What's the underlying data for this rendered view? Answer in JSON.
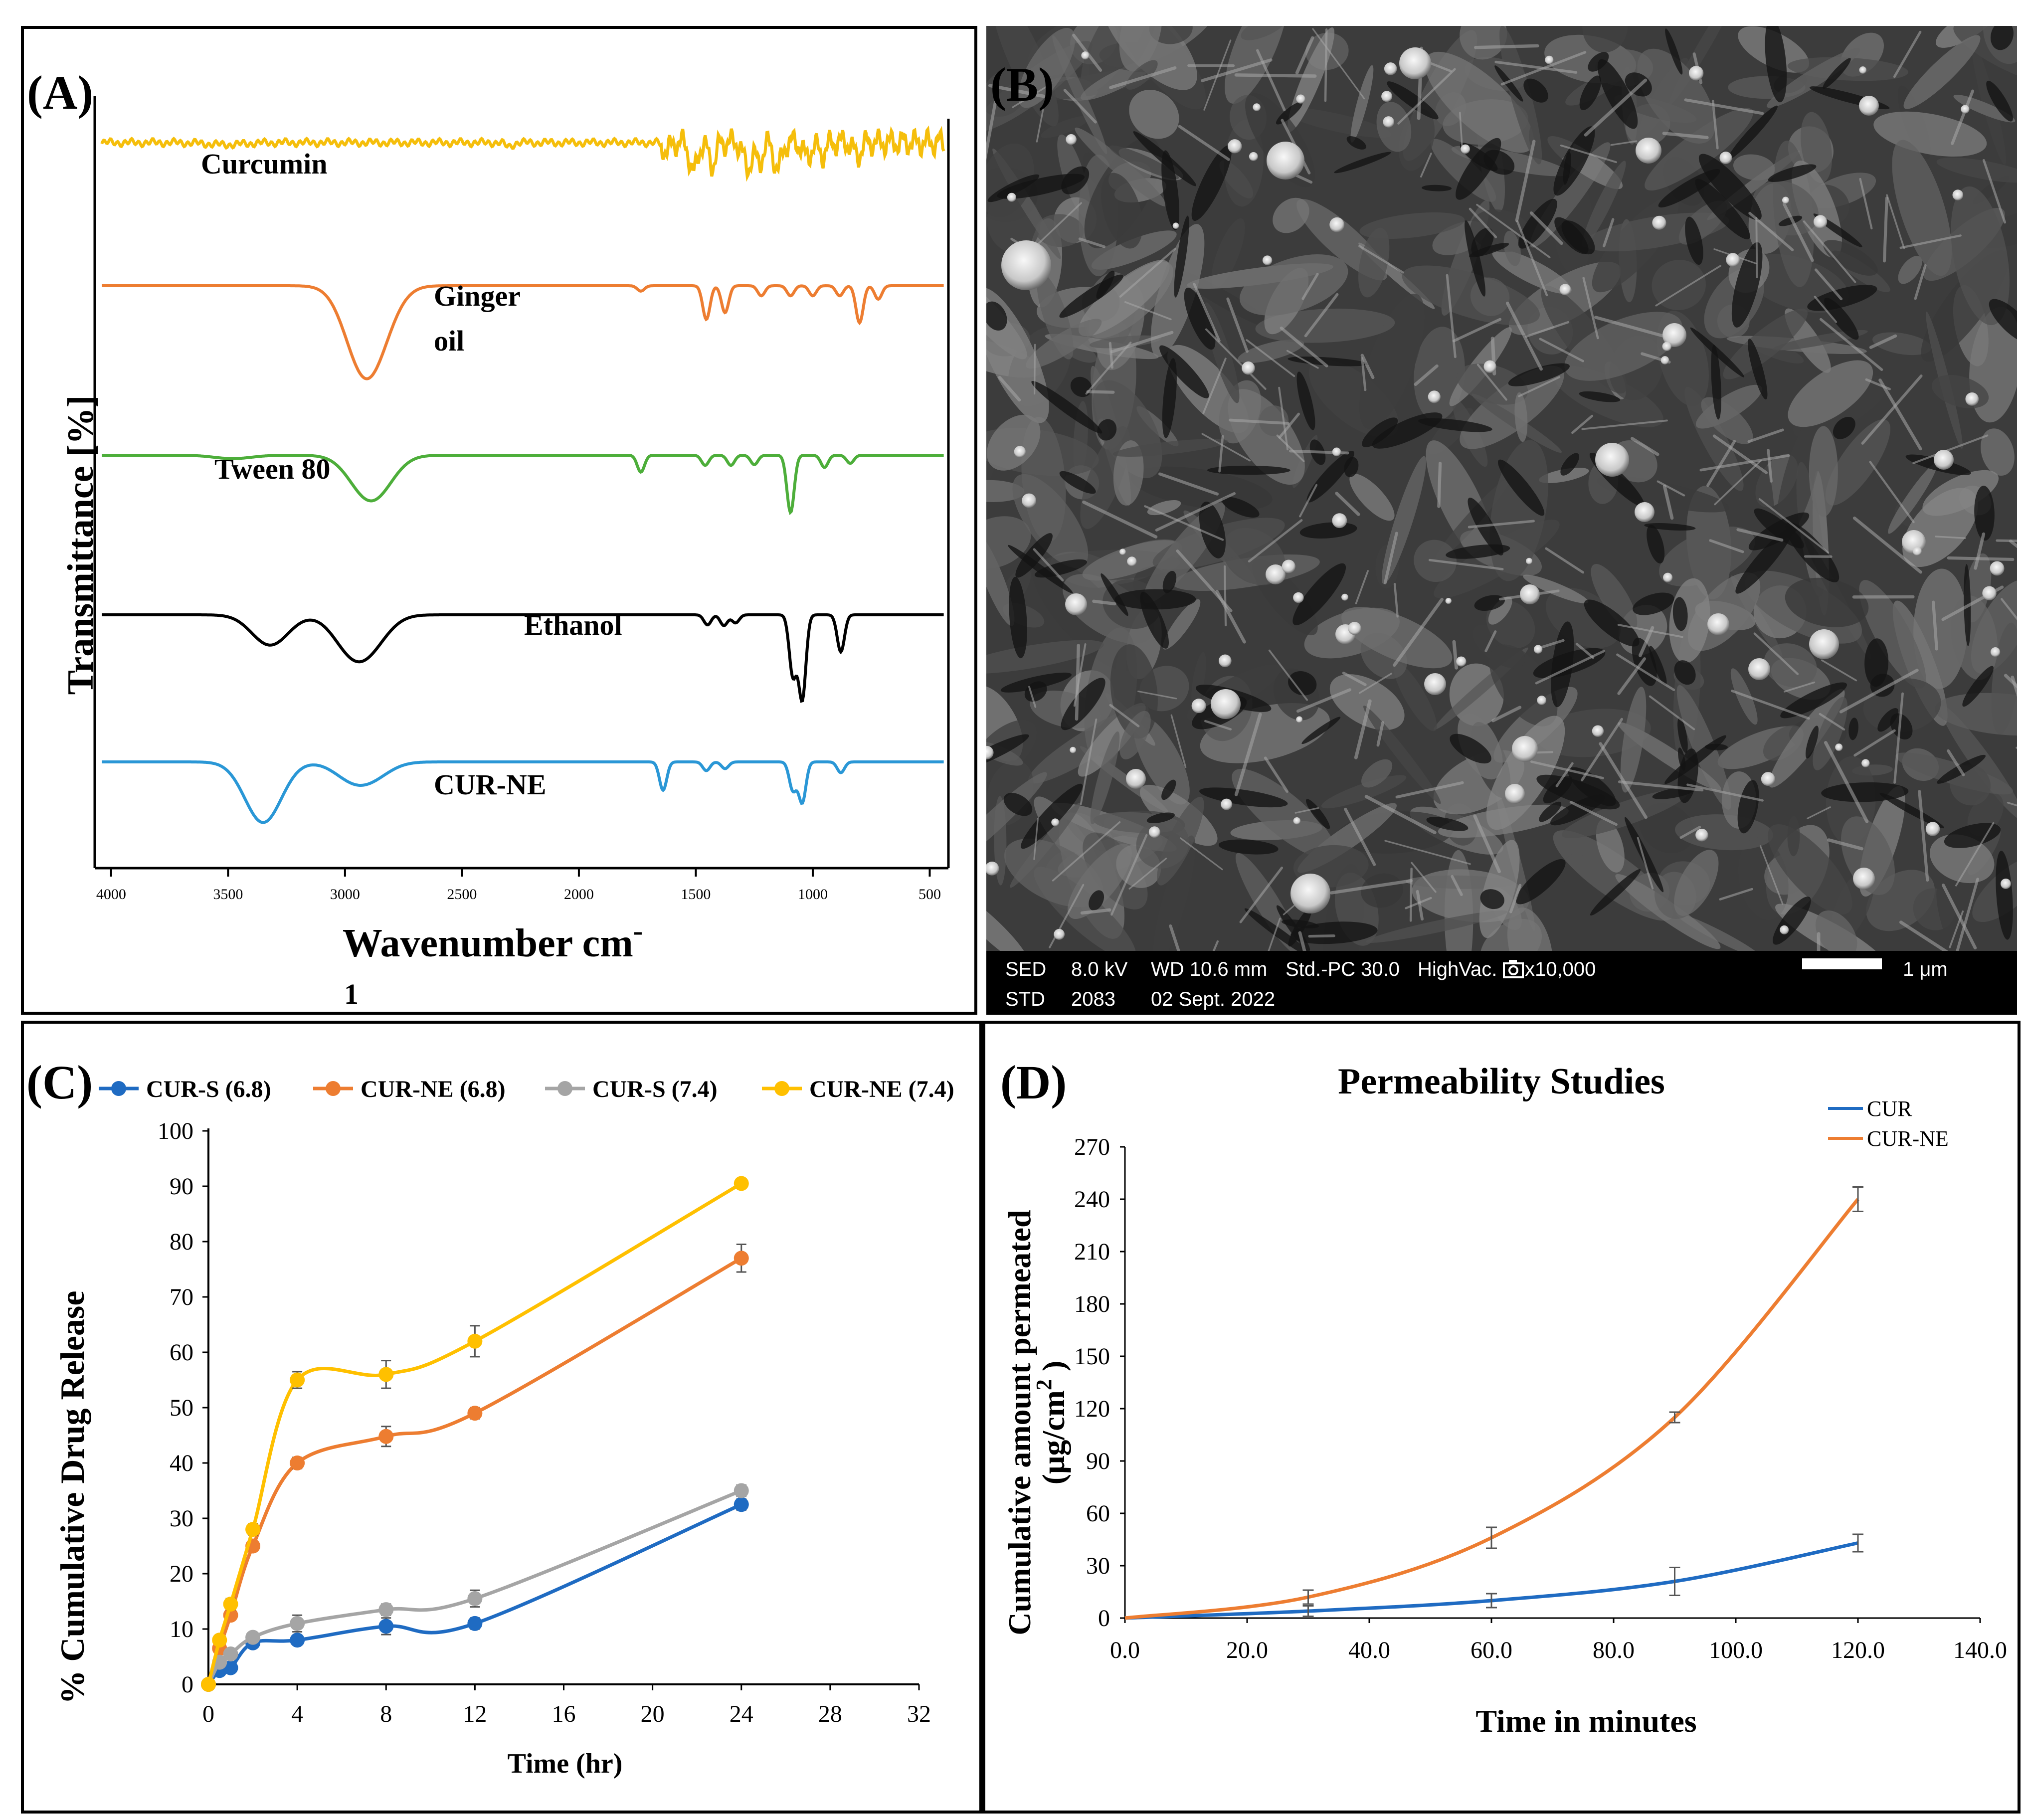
{
  "colors": {
    "curcumin": "#F5BE0B",
    "ginger": "#ED7D31",
    "tween": "#4DAE3A",
    "ethanol": "#000000",
    "curne_ftir": "#2A97D6",
    "cur_s_68": "#1F6BC2",
    "cur_ne_68": "#ED7D31",
    "cur_s_74": "#A5A5A5",
    "cur_ne_74": "#FFC000",
    "cur": "#1F6BC2",
    "cur_ne": "#ED7D31"
  },
  "panelA": {
    "label": "(A)",
    "ylabel": "Transmittance [%]",
    "xlabel": "Wavenumber cm",
    "xlabel_sup": "-",
    "xlabel_line2": "1",
    "ticks": [
      "4000",
      "3500",
      "3000",
      "2500",
      "2000",
      "1500",
      "1000",
      "500"
    ],
    "spectra": [
      {
        "name": "Curcumin",
        "label_lines": [
          "Curcumin"
        ]
      },
      {
        "name": "Ginger oil",
        "label_lines": [
          "Ginger",
          "oil"
        ]
      },
      {
        "name": "Tween 80",
        "label_lines": [
          "Tween 80"
        ]
      },
      {
        "name": "Ethanol",
        "label_lines": [
          "Ethanol"
        ]
      },
      {
        "name": "CUR-NE",
        "label_lines": [
          "CUR-NE"
        ]
      }
    ]
  },
  "panelB": {
    "label": "(B)",
    "info_line1": [
      "SED",
      "8.0 kV",
      "WD 10.6 mm",
      "Std.-PC 30.0",
      "HighVac.",
      "x10,000"
    ],
    "info_line2": [
      "STD",
      "2083",
      "02 Sept. 2022"
    ],
    "scale": "1 μm",
    "icon": "camera-icon"
  },
  "chart_data": [
    {
      "panel": "A",
      "type": "line",
      "title": "",
      "xlabel": "Wavenumber cm-1",
      "ylabel": "Transmittance [%]",
      "xlim": [
        4070,
        420
      ],
      "x_reversed": true,
      "series_names": [
        "Curcumin",
        "Ginger oil",
        "Tween 80",
        "Ethanol",
        "CUR-NE"
      ],
      "bands": {
        "Curcumin": [
          [
            3510,
            0.3
          ],
          [
            2300,
            0.6
          ],
          [
            1625,
            1.2
          ],
          [
            1510,
            4.5
          ],
          [
            1430,
            3.2
          ],
          [
            1280,
            3.8
          ],
          [
            1230,
            3.0
          ],
          [
            1150,
            4.0
          ],
          [
            1025,
            2.2
          ],
          [
            960,
            1.8
          ],
          [
            810,
            2.0
          ]
        ],
        "Ginger oil": [
          [
            2925,
            10.5
          ],
          [
            2855,
            4.5
          ],
          [
            1735,
            0.8
          ],
          [
            1455,
            5.0
          ],
          [
            1375,
            4.0
          ],
          [
            1220,
            1.5
          ],
          [
            1095,
            1.5
          ],
          [
            1000,
            1.5
          ],
          [
            885,
            1.5
          ],
          [
            800,
            5.5
          ],
          [
            720,
            2.0
          ]
        ],
        "Tween 80": [
          [
            3480,
            0.5
          ],
          [
            2920,
            3.5
          ],
          [
            2860,
            3.8
          ],
          [
            1735,
            2.5
          ],
          [
            1460,
            1.5
          ],
          [
            1350,
            1.5
          ],
          [
            1250,
            1.4
          ],
          [
            1095,
            8.5
          ],
          [
            950,
            1.8
          ],
          [
            840,
            1.2
          ]
        ],
        "Ethanol": [
          [
            3320,
            4.5
          ],
          [
            2975,
            4.5
          ],
          [
            2900,
            1.8
          ],
          [
            2880,
            1.8
          ],
          [
            1450,
            1.5
          ],
          [
            1380,
            1.6
          ],
          [
            1330,
            1.2
          ],
          [
            1085,
            9.0
          ],
          [
            1045,
            12.5
          ],
          [
            880,
            5.5
          ]
        ],
        "CUR-NE": [
          [
            3350,
            9.0
          ],
          [
            2970,
            2.3
          ],
          [
            2880,
            1.8
          ],
          [
            1640,
            4.2
          ],
          [
            1455,
            1.3
          ],
          [
            1375,
            1.0
          ],
          [
            1085,
            4.2
          ],
          [
            1045,
            6.0
          ],
          [
            880,
            1.6
          ]
        ]
      }
    },
    {
      "panel": "C",
      "type": "line",
      "title": "",
      "xlabel": "Time (hr)",
      "ylabel": "% Cumulative Drug Release",
      "xlim": [
        0,
        32
      ],
      "ylim": [
        0,
        100
      ],
      "xticks": [
        0,
        4,
        8,
        12,
        16,
        20,
        24,
        28,
        32
      ],
      "yticks": [
        0,
        10,
        20,
        30,
        40,
        50,
        60,
        70,
        80,
        90,
        100
      ],
      "legend_position": "top",
      "x": [
        0,
        0.5,
        1,
        2,
        4,
        8,
        12,
        24
      ],
      "series": [
        {
          "name": "CUR-S (6.8)",
          "values": [
            0,
            2.5,
            3.0,
            7.5,
            8.0,
            10.5,
            11.0,
            32.5
          ],
          "err": [
            0,
            0.5,
            0.5,
            0.8,
            0.8,
            1.5,
            1.0,
            1.0
          ]
        },
        {
          "name": "CUR-NE (6.8)",
          "values": [
            0,
            6.5,
            12.5,
            25.0,
            40.0,
            44.8,
            49.0,
            77.0
          ],
          "err": [
            0,
            0.5,
            0.8,
            0.8,
            1.0,
            1.8,
            1.0,
            2.5
          ]
        },
        {
          "name": "CUR-S (7.4)",
          "values": [
            0,
            4.0,
            5.5,
            8.5,
            11.0,
            13.5,
            15.5,
            35.0
          ],
          "err": [
            0,
            0.5,
            0.5,
            0.8,
            1.5,
            1.0,
            1.5,
            1.0
          ]
        },
        {
          "name": "CUR-NE (7.4)",
          "values": [
            0,
            8.0,
            14.5,
            28.0,
            55.0,
            56.0,
            62.0,
            90.5
          ],
          "err": [
            0,
            0.8,
            1.0,
            1.0,
            1.5,
            2.5,
            2.8,
            0.5
          ]
        }
      ]
    },
    {
      "panel": "D",
      "type": "line",
      "title": "Permeability Studies",
      "xlabel": "Time in minutes",
      "ylabel": "Cumulative amount permeated",
      "ylabel_unit": "(μg/cm",
      "ylabel_unit_sup": "2",
      "ylabel_unit_close": " )",
      "xlim": [
        0,
        140
      ],
      "ylim": [
        0,
        270
      ],
      "xticks": [
        "0.0",
        "20.0",
        "40.0",
        "60.0",
        "80.0",
        "100.0",
        "120.0",
        "140.0"
      ],
      "yticks": [
        "0",
        "30",
        "60",
        "90",
        "120",
        "150",
        "180",
        "210",
        "240",
        "270"
      ],
      "legend_position": "top-right",
      "x": [
        0,
        30,
        60,
        90,
        120
      ],
      "series": [
        {
          "name": "CUR",
          "values": [
            0,
            4,
            10,
            21,
            43
          ],
          "err": [
            0,
            3,
            4,
            8,
            5
          ]
        },
        {
          "name": "CUR-NE",
          "values": [
            0,
            12,
            46,
            115,
            240
          ],
          "err": [
            0,
            4,
            6,
            3,
            7
          ]
        }
      ]
    }
  ]
}
